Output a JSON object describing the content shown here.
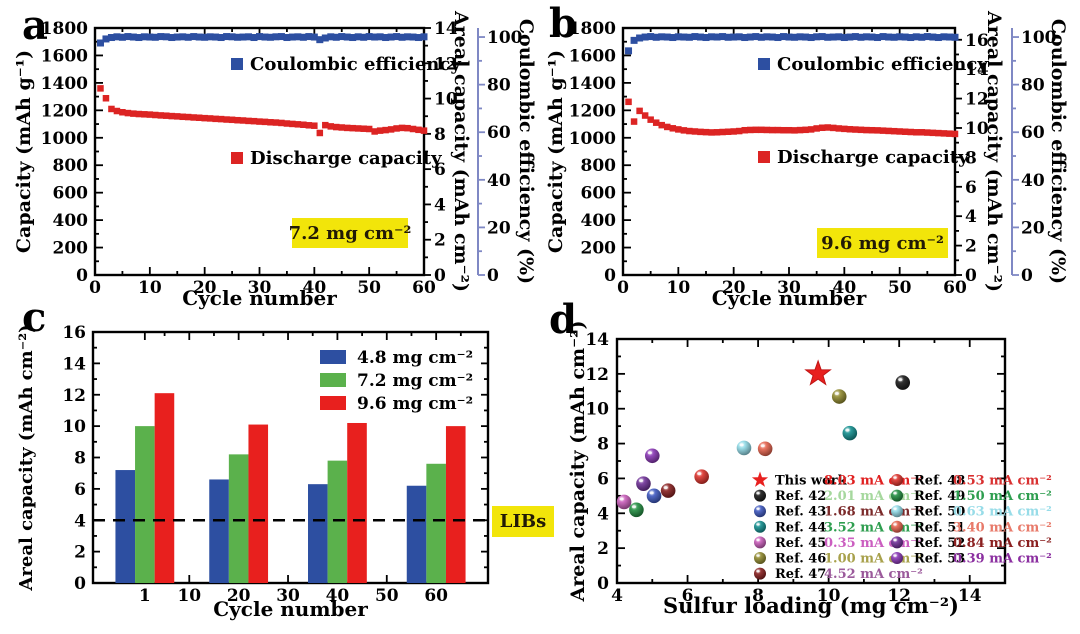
{
  "figure": {
    "background": "#ffffff",
    "accent_yellow": "#f2e50a",
    "ce_axis_color": "#7f88c4"
  },
  "chart_data": [
    {
      "panel_label": "a",
      "type": "line-scatter",
      "xlabel": "Cycle number",
      "ylabel_left": "Capacity (mAh g⁻¹)",
      "ylabel_areal": "Areal capacity (mAh cm⁻²)",
      "ylabel_ce": "Coulombic efficiency (%)",
      "annotation": "7.2 mg cm⁻²",
      "x": {
        "min": 0,
        "max": 60,
        "ticks": [
          0,
          10,
          20,
          30,
          40,
          50,
          60
        ],
        "minor_step": 5
      },
      "y_capacity": {
        "min": 0,
        "max": 1800,
        "tick_step": 200,
        "minor_step": 100
      },
      "y_areal": {
        "min": 0,
        "max": 14,
        "ticks": [
          0,
          2,
          4,
          6,
          8,
          10,
          12,
          14
        ]
      },
      "y_ce": {
        "min": 0,
        "max": 100,
        "ticks": [
          0,
          20,
          40,
          60,
          80,
          100
        ]
      },
      "series": [
        {
          "name": "Coulombic efficiency",
          "color": "#2d4fa1",
          "axis": "ce",
          "values": [
            97.5,
            99.2,
            99.8,
            100.1,
            99.9,
            100.2,
            100.0,
            99.8,
            100.1,
            100.0,
            99.9,
            100.2,
            100.1,
            99.8,
            100.0,
            100.1,
            99.9,
            100.2,
            100.0,
            99.9,
            100.1,
            100.0,
            99.8,
            100.2,
            100.1,
            99.9,
            100.0,
            100.1,
            99.8,
            100.2,
            100.0,
            99.9,
            100.1,
            100.2,
            99.8,
            100.0,
            100.1,
            99.9,
            100.2,
            100.0,
            98.9,
            99.6,
            100.1,
            99.9,
            100.2,
            100.0,
            99.8,
            100.1,
            99.9,
            100.2,
            100.0,
            100.1,
            99.8,
            100.0,
            100.2,
            99.9,
            100.1,
            100.0,
            99.8,
            100.1
          ]
        },
        {
          "name": "Discharge capacity",
          "color": "#dc2423",
          "axis": "capacity",
          "values": [
            1360,
            1288,
            1210,
            1195,
            1186,
            1180,
            1176,
            1173,
            1171,
            1169,
            1166,
            1163,
            1161,
            1158,
            1156,
            1153,
            1151,
            1148,
            1146,
            1143,
            1141,
            1138,
            1136,
            1133,
            1131,
            1128,
            1126,
            1123,
            1121,
            1118,
            1116,
            1113,
            1111,
            1108,
            1104,
            1101,
            1098,
            1095,
            1091,
            1088,
            1035,
            1092,
            1083,
            1078,
            1075,
            1072,
            1070,
            1068,
            1066,
            1064,
            1046,
            1052,
            1056,
            1061,
            1068,
            1072,
            1070,
            1064,
            1058,
            1052
          ]
        }
      ]
    },
    {
      "panel_label": "b",
      "type": "line-scatter",
      "xlabel": "Cycle number",
      "ylabel_left": "Capacity (mAh g⁻¹)",
      "ylabel_areal": "Areal capacity (mAh cm⁻²)",
      "ylabel_ce": "Coulombic efficiency (%)",
      "annotation": "9.6 mg cm⁻²",
      "x": {
        "min": 0,
        "max": 60,
        "ticks": [
          0,
          10,
          20,
          30,
          40,
          50,
          60
        ],
        "minor_step": 5
      },
      "y_capacity": {
        "min": 0,
        "max": 1800,
        "tick_step": 200,
        "minor_step": 100
      },
      "y_areal": {
        "min": 0,
        "max": 16,
        "ticks": [
          0,
          2,
          4,
          6,
          8,
          10,
          12,
          14,
          16
        ]
      },
      "y_ce": {
        "min": 0,
        "max": 100,
        "ticks": [
          0,
          20,
          40,
          60,
          80,
          100
        ]
      },
      "series": [
        {
          "name": "Coulombic efficiency",
          "color": "#2d4fa1",
          "axis": "ce",
          "values": [
            94.2,
            98.6,
            99.6,
            100.0,
            100.2,
            99.9,
            100.1,
            100.0,
            99.8,
            100.1,
            100.0,
            99.9,
            100.2,
            100.0,
            99.8,
            100.1,
            100.0,
            100.2,
            99.9,
            100.0,
            100.1,
            99.8,
            100.0,
            100.2,
            99.9,
            100.1,
            100.0,
            99.8,
            100.2,
            100.0,
            99.9,
            100.1,
            100.0,
            99.8,
            100.1,
            100.2,
            99.9,
            100.0,
            100.1,
            99.8,
            100.0,
            100.2,
            99.9,
            100.1,
            100.0,
            99.8,
            100.2,
            100.0,
            99.9,
            100.1,
            100.0,
            99.8,
            100.1,
            99.9,
            100.2,
            100.0,
            99.8,
            100.1,
            100.0,
            99.9
          ]
        },
        {
          "name": "Discharge capacity",
          "color": "#dc2423",
          "axis": "capacity",
          "values": [
            1262,
            1118,
            1196,
            1162,
            1132,
            1110,
            1092,
            1079,
            1069,
            1061,
            1054,
            1049,
            1046,
            1043,
            1041,
            1039,
            1040,
            1042,
            1044,
            1046,
            1049,
            1055,
            1057,
            1058,
            1058,
            1057,
            1056,
            1056,
            1055,
            1055,
            1054,
            1056,
            1058,
            1061,
            1068,
            1073,
            1075,
            1072,
            1068,
            1065,
            1062,
            1060,
            1058,
            1056,
            1055,
            1054,
            1052,
            1050,
            1048,
            1046,
            1044,
            1042,
            1040,
            1040,
            1038,
            1036,
            1034,
            1032,
            1030,
            1028
          ]
        }
      ]
    },
    {
      "panel_label": "c",
      "type": "bar",
      "xlabel": "Cycle number",
      "ylabel": "Areal capacity (mAh cm⁻²)",
      "categories": [
        1,
        20,
        40,
        60
      ],
      "x_ticks": [
        1,
        10,
        20,
        30,
        40,
        50,
        60
      ],
      "x_minor": [
        5,
        15,
        25,
        35,
        45,
        55,
        65
      ],
      "ylim": [
        0,
        16
      ],
      "y_tick_step": 2,
      "series": [
        {
          "name": "4.8 mg cm⁻²",
          "color": "#2d4fa1",
          "values": [
            7.2,
            6.6,
            6.3,
            6.2
          ]
        },
        {
          "name": "7.2 mg cm⁻²",
          "color": "#5bb14c",
          "values": [
            10.0,
            8.2,
            7.8,
            7.6
          ]
        },
        {
          "name": "9.6 mg cm⁻²",
          "color": "#e8201e",
          "values": [
            12.1,
            10.1,
            10.2,
            10.0
          ]
        }
      ],
      "ref_line": {
        "value": 4,
        "label": "LIBs"
      }
    },
    {
      "panel_label": "d",
      "type": "scatter",
      "xlabel": "Sulfur loading (mg cm⁻²)",
      "ylabel": "Areal capacity (mAh cm⁻²)",
      "xlim": [
        4,
        15
      ],
      "ylim": [
        0,
        14
      ],
      "x_ticks": [
        4,
        6,
        8,
        10,
        12,
        14
      ],
      "y_ticks": [
        0,
        2,
        4,
        6,
        8,
        10,
        12,
        14
      ],
      "points": [
        {
          "label": "This work",
          "x": 9.7,
          "y": 12.0,
          "marker": "star",
          "color": "#e8201e",
          "rate": "8.03 mA cm⁻²",
          "rate_color": "#e02020"
        },
        {
          "label": "Ref. 42",
          "x": 12.1,
          "y": 11.5,
          "marker": "sphere",
          "color": "#151515",
          "rate": "2.01 mA cm⁻²",
          "rate_color": "#a6d89e"
        },
        {
          "label": "Ref. 43",
          "x": 5.05,
          "y": 5.0,
          "marker": "sphere",
          "color": "#3a55be",
          "rate": "1.68 mA cm⁻²",
          "rate_color": "#7b2a2a"
        },
        {
          "label": "Ref. 44",
          "x": 10.6,
          "y": 8.6,
          "marker": "sphere",
          "color": "#0f8d8d",
          "rate": "3.52 mA cm⁻²",
          "rate_color": "#2e9e4f"
        },
        {
          "label": "Ref. 45",
          "x": 4.2,
          "y": 4.65,
          "marker": "sphere",
          "color": "#c75ab8",
          "rate": "0.35 mA cm⁻²",
          "rate_color": "#cb5ec0"
        },
        {
          "label": "Ref. 46",
          "x": 10.3,
          "y": 10.7,
          "marker": "sphere",
          "color": "#90892c",
          "rate": "1.00 mA cm⁻²",
          "rate_color": "#a8a14c"
        },
        {
          "label": "Ref. 47",
          "x": 5.45,
          "y": 5.3,
          "marker": "sphere",
          "color": "#871c1c",
          "rate": "4.52 mA cm⁻²",
          "rate_color": "#9b5a9b"
        },
        {
          "label": "Ref. 48",
          "x": 6.4,
          "y": 6.1,
          "marker": "sphere",
          "color": "#dc2f28",
          "rate": "0.53 mA cm⁻²",
          "rate_color": "#d93030"
        },
        {
          "label": "Ref. 49",
          "x": 4.55,
          "y": 4.2,
          "marker": "sphere",
          "color": "#1e8c3e",
          "rate": "1.50 mA cm⁻²",
          "rate_color": "#2e9e4f"
        },
        {
          "label": "Ref. 50",
          "x": 7.6,
          "y": 7.75,
          "marker": "sphere",
          "color": "#8fd9e6",
          "rate": "0.63 mA cm⁻²",
          "rate_color": "#97dce8"
        },
        {
          "label": "Ref. 51",
          "x": 8.2,
          "y": 7.7,
          "marker": "sphere",
          "color": "#e5604a",
          "rate": "3.40 mA cm⁻²",
          "rate_color": "#e87a6a"
        },
        {
          "label": "Ref. 52",
          "x": 4.75,
          "y": 5.7,
          "marker": "sphere",
          "color": "#6c2d95",
          "rate": "0.84 mA cm⁻²",
          "rate_color": "#8b2020"
        },
        {
          "label": "Ref. 53",
          "x": 5.0,
          "y": 7.3,
          "marker": "sphere",
          "color": "#8733b3",
          "rate": "0.39 mA cm⁻²",
          "rate_color": "#8b2fa0"
        }
      ],
      "legend_columns": [
        [
          "This work",
          "Ref. 42",
          "Ref. 43",
          "Ref. 44",
          "Ref. 45",
          "Ref. 46",
          "Ref. 47"
        ],
        [
          "Ref. 48",
          "Ref. 49",
          "Ref. 50",
          "Ref. 51",
          "Ref. 52",
          "Ref. 53"
        ]
      ]
    }
  ]
}
